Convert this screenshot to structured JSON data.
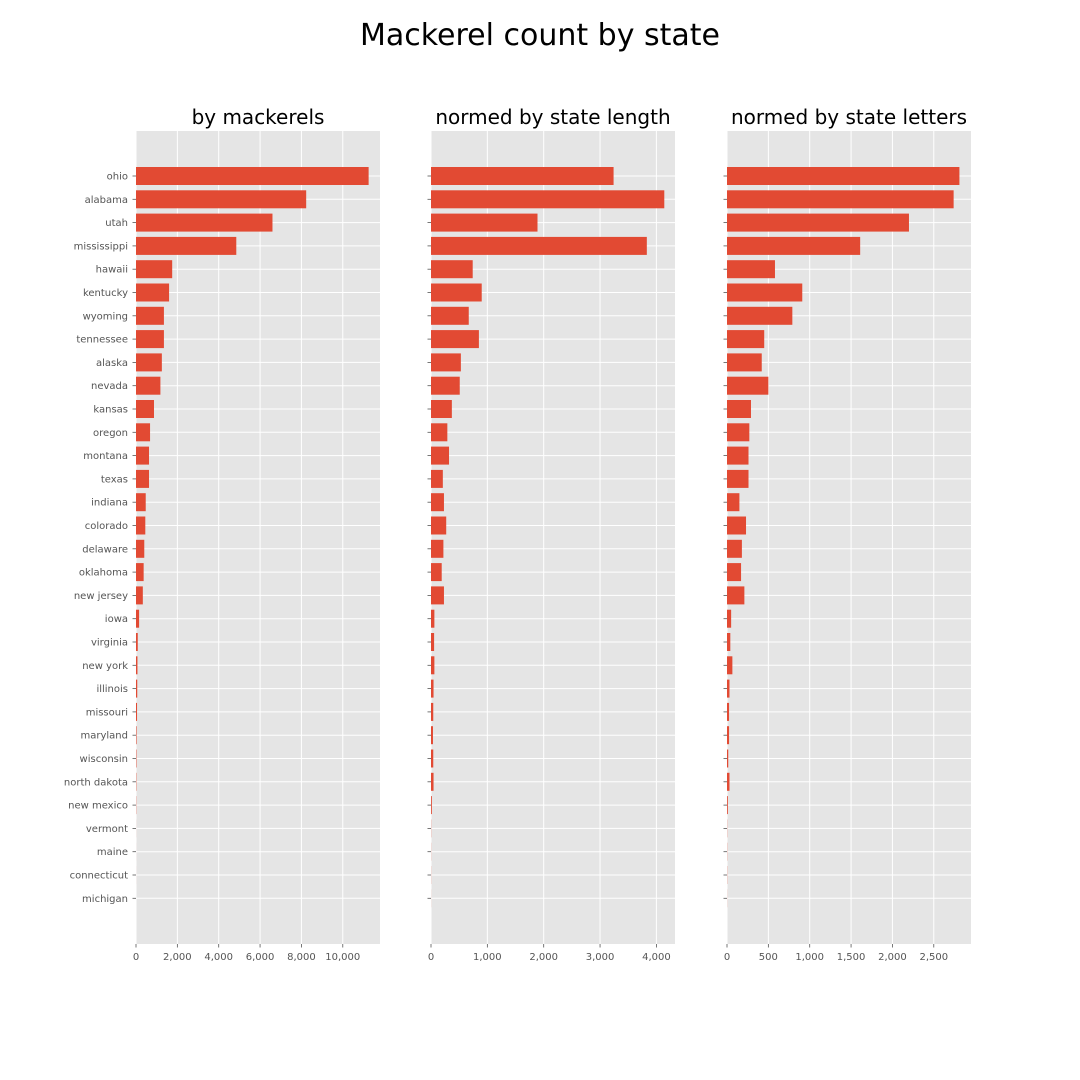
{
  "figure_title": "Mackerel count by state",
  "colors": {
    "bar": "#E24A33",
    "axes_background": "#E5E5E5",
    "grid": "#FFFFFF",
    "tick_text": "#555555"
  },
  "chart_data": [
    {
      "type": "bar",
      "orientation": "horizontal",
      "title": "by mackerels",
      "categories": [
        "ohio",
        "alabama",
        "utah",
        "mississippi",
        "hawaii",
        "kentucky",
        "wyoming",
        "tennessee",
        "alaska",
        "nevada",
        "kansas",
        "oregon",
        "montana",
        "texas",
        "indiana",
        "colorado",
        "delaware",
        "oklahoma",
        "new jersey",
        "iowa",
        "virginia",
        "new york",
        "illinois",
        "missouri",
        "maryland",
        "wisconsin",
        "north dakota",
        "new mexico",
        "vermont",
        "maine",
        "connecticut",
        "michigan"
      ],
      "values": [
        11250,
        8230,
        6600,
        4850,
        1750,
        1600,
        1350,
        1350,
        1250,
        1180,
        870,
        680,
        630,
        630,
        470,
        450,
        400,
        370,
        330,
        150,
        85,
        70,
        60,
        50,
        25,
        20,
        15,
        10,
        2,
        1,
        1,
        0
      ],
      "xlim": [
        0,
        11800
      ],
      "xticks": [
        0,
        2000,
        4000,
        6000,
        8000,
        10000
      ],
      "xtick_labels": [
        "0",
        "2,000",
        "4,000",
        "6,000",
        "8,000",
        "10,000"
      ],
      "show_category_labels": true,
      "grid": true
    },
    {
      "type": "bar",
      "orientation": "horizontal",
      "title": "normed by state length",
      "categories": [
        "ohio",
        "alabama",
        "utah",
        "mississippi",
        "hawaii",
        "kentucky",
        "wyoming",
        "tennessee",
        "alaska",
        "nevada",
        "kansas",
        "oregon",
        "montana",
        "texas",
        "indiana",
        "colorado",
        "delaware",
        "oklahoma",
        "new jersey",
        "iowa",
        "virginia",
        "new york",
        "illinois",
        "missouri",
        "maryland",
        "wisconsin",
        "north dakota",
        "new mexico",
        "vermont",
        "maine",
        "connecticut",
        "michigan"
      ],
      "values": [
        3240,
        4140,
        1890,
        3830,
        740,
        900,
        670,
        850,
        530,
        510,
        370,
        290,
        320,
        210,
        230,
        270,
        220,
        190,
        230,
        60,
        55,
        60,
        45,
        40,
        35,
        40,
        45,
        15,
        3,
        2,
        2,
        1
      ],
      "xlim": [
        0,
        4330
      ],
      "xticks": [
        0,
        1000,
        2000,
        3000,
        4000
      ],
      "xtick_labels": [
        "0",
        "1,000",
        "2,000",
        "3,000",
        "4,000"
      ],
      "show_category_labels": false,
      "grid": true
    },
    {
      "type": "bar",
      "orientation": "horizontal",
      "title": "normed by state letters",
      "categories": [
        "ohio",
        "alabama",
        "utah",
        "mississippi",
        "hawaii",
        "kentucky",
        "wyoming",
        "tennessee",
        "alaska",
        "nevada",
        "kansas",
        "oregon",
        "montana",
        "texas",
        "indiana",
        "colorado",
        "delaware",
        "oklahoma",
        "new jersey",
        "iowa",
        "virginia",
        "new york",
        "illinois",
        "missouri",
        "maryland",
        "wisconsin",
        "north dakota",
        "new mexico",
        "vermont",
        "maine",
        "connecticut",
        "michigan"
      ],
      "values": [
        2810,
        2740,
        2200,
        1610,
        580,
        910,
        790,
        450,
        420,
        500,
        290,
        270,
        260,
        260,
        150,
        230,
        180,
        170,
        210,
        50,
        40,
        65,
        30,
        25,
        25,
        15,
        30,
        10,
        2,
        2,
        2,
        1
      ],
      "xlim": [
        0,
        2950
      ],
      "xticks": [
        0,
        500,
        1000,
        1500,
        2000,
        2500
      ],
      "xtick_labels": [
        "0",
        "500",
        "1,000",
        "1,500",
        "2,000",
        "2,500"
      ],
      "show_category_labels": false,
      "grid": true
    }
  ]
}
